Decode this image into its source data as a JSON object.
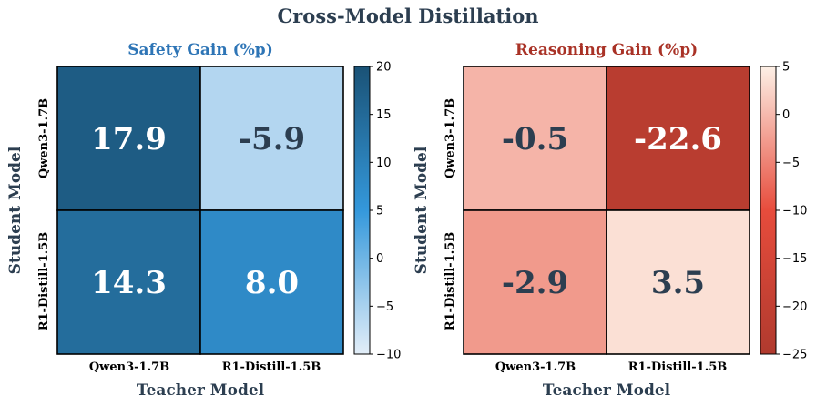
{
  "title": "Cross-Model Distillation",
  "colors": {
    "title": "#2c3e50",
    "safety_title": "#2e75b6",
    "reasoning_title": "#a93226",
    "light_text": "#ffffff",
    "dark_text": "#2c3e50"
  },
  "chart_data": [
    {
      "type": "heatmap",
      "title": "Safety Gain (%p)",
      "xlabel": "Teacher Model",
      "ylabel": "Student Model",
      "x_categories": [
        "Qwen3-1.7B",
        "R1-Distill-1.5B"
      ],
      "y_categories": [
        "Qwen3-1.7B",
        "R1-Distill-1.5B"
      ],
      "values": [
        [
          17.9,
          -5.9
        ],
        [
          14.3,
          8.0
        ]
      ],
      "value_labels": [
        [
          "17.9",
          "-5.9"
        ],
        [
          "14.3",
          "8.0"
        ]
      ],
      "colorbar": {
        "min": -10,
        "max": 20,
        "ticks": [
          "20",
          "15",
          "10",
          "5",
          "0",
          "−5",
          "−10"
        ],
        "tick_values": [
          20,
          15,
          10,
          5,
          0,
          -5,
          -10
        ]
      },
      "colormap": [
        "#e3eef8",
        "#3498db",
        "#1a5276"
      ]
    },
    {
      "type": "heatmap",
      "title": "Reasoning Gain (%p)",
      "xlabel": "Teacher Model",
      "ylabel": "Student Model",
      "x_categories": [
        "Qwen3-1.7B",
        "R1-Distill-1.5B"
      ],
      "y_categories": [
        "Qwen3-1.7B",
        "R1-Distill-1.5B"
      ],
      "values": [
        [
          -0.5,
          -22.6
        ],
        [
          -2.9,
          3.5
        ]
      ],
      "value_labels": [
        [
          "-0.5",
          "-22.6"
        ],
        [
          "-2.9",
          "3.5"
        ]
      ],
      "colorbar": {
        "min": -25,
        "max": 5,
        "ticks": [
          "5",
          "0",
          "−5",
          "−10",
          "−15",
          "−20",
          "−25"
        ],
        "tick_values": [
          5,
          0,
          -5,
          -10,
          -15,
          -20,
          -25
        ]
      },
      "colormap": [
        "#b03a2e",
        "#e74c3c",
        "#fdf0e6"
      ]
    }
  ]
}
